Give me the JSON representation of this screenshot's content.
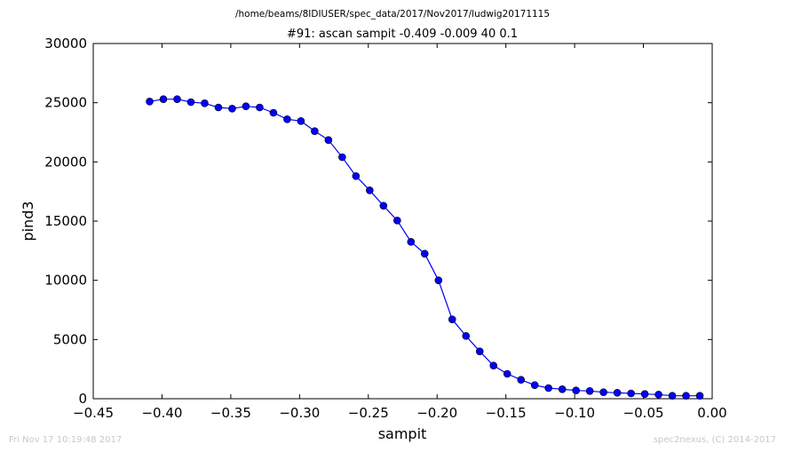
{
  "header": {
    "path": "/home/beams/8IDIUSER/spec_data/2017/Nov2017/ludwig20171115"
  },
  "footer": {
    "timestamp": "Fri Nov 17 10:19:48 2017",
    "credit": "spec2nexus, (C) 2014-2017"
  },
  "chart_data": {
    "type": "line",
    "title": "#91: ascan  sampit -0.409 -0.009  40 0.1",
    "xlabel": "sampit",
    "ylabel": "pind3",
    "xlim": [
      -0.45,
      0.0
    ],
    "ylim": [
      0,
      30000
    ],
    "xticks": [
      -0.45,
      -0.4,
      -0.35,
      -0.3,
      -0.25,
      -0.2,
      -0.15,
      -0.1,
      -0.05,
      0.0
    ],
    "xtick_labels": [
      "−0.45",
      "−0.40",
      "−0.35",
      "−0.30",
      "−0.25",
      "−0.20",
      "−0.15",
      "−0.10",
      "−0.05",
      "0.00"
    ],
    "yticks": [
      0,
      5000,
      10000,
      15000,
      20000,
      25000,
      30000
    ],
    "ytick_labels": [
      "0",
      "5000",
      "10000",
      "15000",
      "20000",
      "25000",
      "30000"
    ],
    "grid": false,
    "color": "#0000ff",
    "marker": "circle",
    "x": [
      -0.409,
      -0.399,
      -0.389,
      -0.379,
      -0.369,
      -0.359,
      -0.349,
      -0.339,
      -0.329,
      -0.319,
      -0.309,
      -0.299,
      -0.289,
      -0.279,
      -0.269,
      -0.259,
      -0.249,
      -0.239,
      -0.229,
      -0.219,
      -0.209,
      -0.199,
      -0.189,
      -0.179,
      -0.169,
      -0.159,
      -0.149,
      -0.139,
      -0.129,
      -0.119,
      -0.109,
      -0.099,
      -0.089,
      -0.079,
      -0.069,
      -0.059,
      -0.049,
      -0.039,
      -0.029,
      -0.019,
      -0.009
    ],
    "y": [
      25100,
      25300,
      25300,
      25050,
      24950,
      24600,
      24500,
      24700,
      24600,
      24150,
      23600,
      23450,
      22600,
      21850,
      20400,
      18800,
      17600,
      16300,
      15050,
      13250,
      12250,
      10000,
      6700,
      5300,
      4000,
      2800,
      2100,
      1600,
      1150,
      900,
      800,
      700,
      650,
      550,
      500,
      450,
      400,
      350,
      250,
      250,
      250
    ]
  }
}
